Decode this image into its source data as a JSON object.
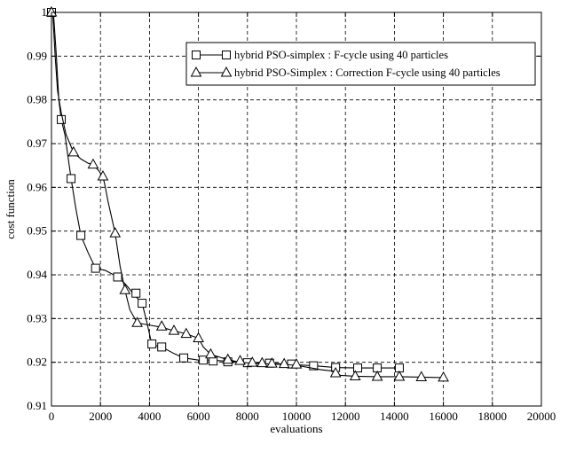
{
  "chart_data": {
    "type": "line",
    "xlabel": "evaluations",
    "ylabel": "cost function",
    "xlim": [
      0,
      20000
    ],
    "ylim": [
      0.91,
      1.0
    ],
    "x_ticks": [
      0,
      2000,
      4000,
      6000,
      8000,
      10000,
      12000,
      14000,
      16000,
      18000,
      20000
    ],
    "x_tick_labels": [
      "0",
      "2000",
      "4000",
      "6000",
      "8000",
      "10000",
      "12000",
      "14000",
      "16000",
      "18000",
      "20000"
    ],
    "y_ticks": [
      0.91,
      0.92,
      0.93,
      0.94,
      0.95,
      0.96,
      0.97,
      0.98,
      0.99,
      1.0
    ],
    "y_tick_labels": [
      "0.91",
      "0.92",
      "0.93",
      "0.94",
      "0.95",
      "0.96",
      "0.97",
      "0.98",
      "0.99",
      "1"
    ],
    "grid": true,
    "legend_position": "top-right",
    "series": [
      {
        "name": "hybrid PSO-simplex : F-cycle using 40 particles",
        "marker": "square",
        "line": [
          [
            0,
            1.0
          ],
          [
            80,
            1.0
          ],
          [
            200,
            0.99
          ],
          [
            300,
            0.98
          ],
          [
            400,
            0.9755
          ],
          [
            550,
            0.972
          ],
          [
            700,
            0.966
          ],
          [
            800,
            0.962
          ],
          [
            1000,
            0.955
          ],
          [
            1200,
            0.949
          ],
          [
            1500,
            0.945
          ],
          [
            1800,
            0.9415
          ],
          [
            2200,
            0.941
          ],
          [
            2700,
            0.9395
          ],
          [
            3000,
            0.938
          ],
          [
            3300,
            0.936
          ],
          [
            3450,
            0.935
          ],
          [
            3700,
            0.9335
          ],
          [
            3900,
            0.929
          ],
          [
            4100,
            0.924
          ],
          [
            4500,
            0.9235
          ],
          [
            5000,
            0.922
          ],
          [
            5400,
            0.921
          ],
          [
            6000,
            0.9205
          ],
          [
            6200,
            0.9205
          ],
          [
            6500,
            0.9205
          ],
          [
            7000,
            0.9203
          ],
          [
            7500,
            0.9201
          ],
          [
            8000,
            0.92
          ],
          [
            8500,
            0.9199
          ],
          [
            9000,
            0.9198
          ],
          [
            9800,
            0.9195
          ],
          [
            10700,
            0.9192
          ],
          [
            11600,
            0.9188
          ],
          [
            12500,
            0.9187
          ],
          [
            13300,
            0.9187
          ],
          [
            14200,
            0.9187
          ]
        ],
        "points": [
          [
            0,
            1.0
          ],
          [
            400,
            0.9755
          ],
          [
            800,
            0.962
          ],
          [
            1200,
            0.949
          ],
          [
            1800,
            0.9415
          ],
          [
            2700,
            0.9395
          ],
          [
            3450,
            0.9358
          ],
          [
            3700,
            0.9335
          ],
          [
            4100,
            0.9242
          ],
          [
            4500,
            0.9235
          ],
          [
            5400,
            0.921
          ],
          [
            6200,
            0.9205
          ],
          [
            6600,
            0.9203
          ],
          [
            7200,
            0.9201
          ],
          [
            8000,
            0.9199
          ],
          [
            8900,
            0.9198
          ],
          [
            9800,
            0.9196
          ],
          [
            10700,
            0.9192
          ],
          [
            11600,
            0.9188
          ],
          [
            12500,
            0.9187
          ],
          [
            13300,
            0.9187
          ],
          [
            14200,
            0.9187
          ]
        ]
      },
      {
        "name": "hybrid PSO-Simplex : Correction F-cycle using 40 particles",
        "marker": "triangle",
        "line": [
          [
            0,
            1.0
          ],
          [
            50,
            1.0
          ],
          [
            150,
            0.99
          ],
          [
            250,
            0.982
          ],
          [
            400,
            0.977
          ],
          [
            600,
            0.972
          ],
          [
            900,
            0.968
          ],
          [
            1200,
            0.9665
          ],
          [
            1500,
            0.9655
          ],
          [
            1700,
            0.9652
          ],
          [
            1900,
            0.964
          ],
          [
            2100,
            0.9625
          ],
          [
            2200,
            0.96
          ],
          [
            2300,
            0.957
          ],
          [
            2500,
            0.952
          ],
          [
            2600,
            0.9495
          ],
          [
            2800,
            0.942
          ],
          [
            3000,
            0.9365
          ],
          [
            3200,
            0.932
          ],
          [
            3500,
            0.929
          ],
          [
            4000,
            0.9285
          ],
          [
            4500,
            0.928
          ],
          [
            5000,
            0.9272
          ],
          [
            5500,
            0.9265
          ],
          [
            6000,
            0.9255
          ],
          [
            6200,
            0.9235
          ],
          [
            6500,
            0.9218
          ],
          [
            7200,
            0.9206
          ],
          [
            7700,
            0.92
          ],
          [
            8200,
            0.9198
          ],
          [
            8600,
            0.9197
          ],
          [
            9000,
            0.9196
          ],
          [
            9500,
            0.9195
          ],
          [
            10000,
            0.9193
          ],
          [
            10500,
            0.9188
          ],
          [
            11000,
            0.9183
          ],
          [
            11500,
            0.918
          ],
          [
            11800,
            0.917
          ],
          [
            12400,
            0.9168
          ],
          [
            13300,
            0.9167
          ],
          [
            14200,
            0.9167
          ],
          [
            15100,
            0.9166
          ],
          [
            16000,
            0.9165
          ]
        ],
        "points": [
          [
            0,
            1.0
          ],
          [
            900,
            0.968
          ],
          [
            1700,
            0.9652
          ],
          [
            2100,
            0.9625
          ],
          [
            2600,
            0.9495
          ],
          [
            3000,
            0.9365
          ],
          [
            3500,
            0.929
          ],
          [
            4500,
            0.9282
          ],
          [
            5000,
            0.9272
          ],
          [
            5500,
            0.9265
          ],
          [
            6000,
            0.9255
          ],
          [
            6500,
            0.9218
          ],
          [
            7200,
            0.9206
          ],
          [
            7700,
            0.9203
          ],
          [
            8200,
            0.9199
          ],
          [
            8600,
            0.9198
          ],
          [
            9000,
            0.9197
          ],
          [
            9500,
            0.9196
          ],
          [
            10000,
            0.9195
          ],
          [
            11600,
            0.9175
          ],
          [
            12400,
            0.9168
          ],
          [
            13300,
            0.9167
          ],
          [
            14200,
            0.9167
          ],
          [
            15100,
            0.9166
          ],
          [
            16000,
            0.9165
          ]
        ]
      }
    ]
  }
}
